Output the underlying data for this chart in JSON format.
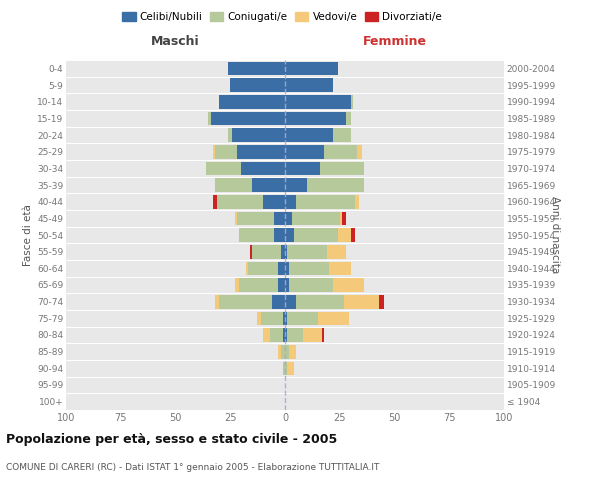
{
  "age_groups": [
    "100+",
    "95-99",
    "90-94",
    "85-89",
    "80-84",
    "75-79",
    "70-74",
    "65-69",
    "60-64",
    "55-59",
    "50-54",
    "45-49",
    "40-44",
    "35-39",
    "30-34",
    "25-29",
    "20-24",
    "15-19",
    "10-14",
    "5-9",
    "0-4"
  ],
  "birth_years": [
    "≤ 1904",
    "1905-1909",
    "1910-1914",
    "1915-1919",
    "1920-1924",
    "1925-1929",
    "1930-1934",
    "1935-1939",
    "1940-1944",
    "1945-1949",
    "1950-1954",
    "1955-1959",
    "1960-1964",
    "1965-1969",
    "1970-1974",
    "1975-1979",
    "1980-1984",
    "1985-1989",
    "1990-1994",
    "1995-1999",
    "2000-2004"
  ],
  "colors": {
    "celibi": "#3a6ea5",
    "coniugati": "#b5c99a",
    "vedovi": "#f5c97a",
    "divorziati": "#cc2222"
  },
  "maschi": {
    "celibi": [
      0,
      0,
      0,
      0,
      1,
      1,
      6,
      3,
      3,
      2,
      5,
      5,
      10,
      15,
      20,
      22,
      24,
      34,
      30,
      25,
      26
    ],
    "coniugati": [
      0,
      0,
      1,
      2,
      6,
      10,
      24,
      18,
      14,
      13,
      16,
      17,
      21,
      17,
      16,
      10,
      2,
      1,
      0,
      0,
      0
    ],
    "vedovi": [
      0,
      0,
      0,
      1,
      3,
      2,
      2,
      2,
      1,
      0,
      0,
      1,
      0,
      0,
      0,
      1,
      0,
      0,
      0,
      0,
      0
    ],
    "divorziati": [
      0,
      0,
      0,
      0,
      0,
      0,
      0,
      0,
      0,
      1,
      0,
      0,
      2,
      0,
      0,
      0,
      0,
      0,
      0,
      0,
      0
    ]
  },
  "femmine": {
    "celibi": [
      0,
      0,
      0,
      0,
      1,
      1,
      5,
      2,
      2,
      1,
      4,
      3,
      5,
      10,
      16,
      18,
      22,
      28,
      30,
      22,
      24
    ],
    "coniugati": [
      0,
      0,
      1,
      2,
      7,
      14,
      22,
      20,
      18,
      18,
      20,
      22,
      27,
      26,
      20,
      15,
      8,
      2,
      1,
      0,
      0
    ],
    "vedovi": [
      0,
      0,
      3,
      3,
      9,
      14,
      16,
      14,
      10,
      9,
      6,
      1,
      2,
      0,
      0,
      2,
      0,
      0,
      0,
      0,
      0
    ],
    "divorziati": [
      0,
      0,
      0,
      0,
      1,
      0,
      2,
      0,
      0,
      0,
      2,
      2,
      0,
      0,
      0,
      0,
      0,
      0,
      0,
      0,
      0
    ]
  },
  "title": "Popolazione per età, sesso e stato civile - 2005",
  "subtitle": "COMUNE DI CARERI (RC) - Dati ISTAT 1° gennaio 2005 - Elaborazione TUTTITALIA.IT",
  "xlabel_left": "Maschi",
  "xlabel_right": "Femmine",
  "ylabel_left": "Fasce di età",
  "ylabel_right": "Anni di nascita",
  "legend_labels": [
    "Celibi/Nubili",
    "Coniugati/e",
    "Vedovi/e",
    "Divorziati/e"
  ],
  "xlim": 100,
  "plot_bg": "#e8e8e8",
  "fig_bg": "#ffffff",
  "grid_color": "#ffffff",
  "center_line_color": "#aaaacc",
  "maschi_label_color": "#444444",
  "femmine_label_color": "#cc3333",
  "tick_color": "#777777",
  "ylabel_color": "#555555",
  "title_color": "#111111",
  "subtitle_color": "#555555"
}
